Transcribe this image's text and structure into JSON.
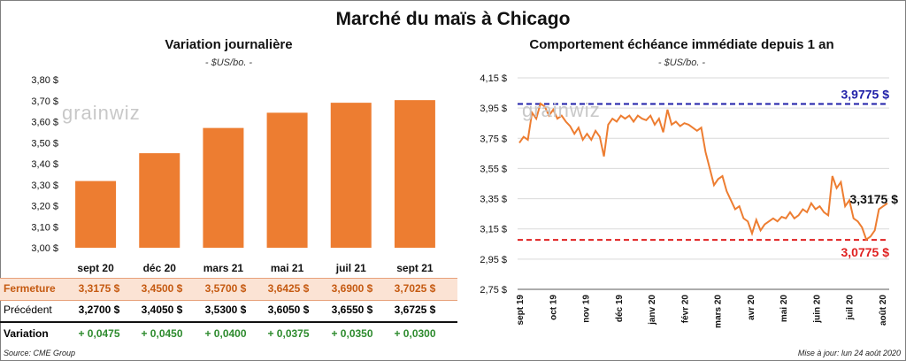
{
  "main_title": "Marché du maïs à Chicago",
  "left": {
    "title": "Variation journalière",
    "subtitle": "- $US/bo. -",
    "watermark": "grainwiz",
    "table": {
      "close_label": "Fermeture",
      "prev_label": "Précédent",
      "var_label": "Variation",
      "close": [
        "3,3175 $",
        "3,4500 $",
        "3,5700 $",
        "3,6425 $",
        "3,6900 $",
        "3,7025 $"
      ],
      "prev": [
        "3,2700 $",
        "3,4050 $",
        "3,5300 $",
        "3,6050 $",
        "3,6550 $",
        "3,6725 $"
      ],
      "var": [
        "+ 0,0475",
        "+ 0,0450",
        "+ 0,0400",
        "+ 0,0375",
        "+ 0,0350",
        "+ 0,0300"
      ]
    }
  },
  "right": {
    "title": "Comportement échéance immédiate depuis 1 an",
    "subtitle": "- $US/bo. -",
    "watermark": "grainwiz",
    "high_label": "3,9775 $",
    "last_label": "3,3175 $",
    "low_label": "3,0775 $"
  },
  "source": "Source: CME Group",
  "update": "Mise à jour: lun 24 août 2020",
  "colors": {
    "bar": "#ed7d31",
    "high": "#1f1fa8",
    "low": "#e02020",
    "up": "#2e8b2e"
  },
  "chart_data": [
    {
      "type": "bar",
      "categories": [
        "sept 20",
        "déc 20",
        "mars 21",
        "mai 21",
        "juil 21",
        "sept 21"
      ],
      "values": [
        3.3175,
        3.45,
        3.57,
        3.6425,
        3.69,
        3.7025
      ],
      "ylim": [
        3.0,
        3.8
      ],
      "yticks": [
        "3,00 $",
        "3,10 $",
        "3,20 $",
        "3,30 $",
        "3,40 $",
        "3,50 $",
        "3,60 $",
        "3,70 $",
        "3,80 $"
      ]
    },
    {
      "type": "line",
      "ylim": [
        2.75,
        4.15
      ],
      "yticks": [
        "2,75 $",
        "2,95 $",
        "3,15 $",
        "3,35 $",
        "3,55 $",
        "3,75 $",
        "3,95 $",
        "4,15 $"
      ],
      "xticks": [
        "sept 19",
        "oct 19",
        "nov 19",
        "déc 19",
        "janv 20",
        "févr 20",
        "mars 20",
        "avr 20",
        "mai 20",
        "juin 20",
        "juil 20",
        "août 20"
      ],
      "reference_lines": [
        3.9775,
        3.0775
      ],
      "points": [
        [
          0,
          3.72
        ],
        [
          1,
          3.76
        ],
        [
          2,
          3.74
        ],
        [
          3,
          3.92
        ],
        [
          4,
          3.88
        ],
        [
          5,
          3.98
        ],
        [
          6,
          3.96
        ],
        [
          7,
          3.9
        ],
        [
          8,
          3.94
        ],
        [
          9,
          3.88
        ],
        [
          10,
          3.9
        ],
        [
          11,
          3.86
        ],
        [
          12,
          3.83
        ],
        [
          13,
          3.78
        ],
        [
          14,
          3.82
        ],
        [
          15,
          3.74
        ],
        [
          16,
          3.78
        ],
        [
          17,
          3.74
        ],
        [
          18,
          3.8
        ],
        [
          19,
          3.76
        ],
        [
          20,
          3.63
        ],
        [
          21,
          3.84
        ],
        [
          22,
          3.88
        ],
        [
          23,
          3.86
        ],
        [
          24,
          3.9
        ],
        [
          25,
          3.88
        ],
        [
          26,
          3.9
        ],
        [
          27,
          3.86
        ],
        [
          28,
          3.9
        ],
        [
          29,
          3.88
        ],
        [
          30,
          3.87
        ],
        [
          31,
          3.9
        ],
        [
          32,
          3.84
        ],
        [
          33,
          3.88
        ],
        [
          34,
          3.79
        ],
        [
          35,
          3.94
        ],
        [
          36,
          3.84
        ],
        [
          37,
          3.86
        ],
        [
          38,
          3.83
        ],
        [
          39,
          3.85
        ],
        [
          40,
          3.84
        ],
        [
          41,
          3.82
        ],
        [
          42,
          3.8
        ],
        [
          43,
          3.82
        ],
        [
          44,
          3.66
        ],
        [
          45,
          3.55
        ],
        [
          46,
          3.44
        ],
        [
          47,
          3.48
        ],
        [
          48,
          3.5
        ],
        [
          49,
          3.4
        ],
        [
          50,
          3.34
        ],
        [
          51,
          3.28
        ],
        [
          52,
          3.3
        ],
        [
          53,
          3.22
        ],
        [
          54,
          3.2
        ],
        [
          55,
          3.12
        ],
        [
          56,
          3.21
        ],
        [
          57,
          3.14
        ],
        [
          58,
          3.18
        ],
        [
          59,
          3.2
        ],
        [
          60,
          3.22
        ],
        [
          61,
          3.2
        ],
        [
          62,
          3.23
        ],
        [
          63,
          3.22
        ],
        [
          64,
          3.26
        ],
        [
          65,
          3.22
        ],
        [
          66,
          3.24
        ],
        [
          67,
          3.28
        ],
        [
          68,
          3.26
        ],
        [
          69,
          3.32
        ],
        [
          70,
          3.28
        ],
        [
          71,
          3.3
        ],
        [
          72,
          3.26
        ],
        [
          73,
          3.24
        ],
        [
          74,
          3.5
        ],
        [
          75,
          3.42
        ],
        [
          76,
          3.46
        ],
        [
          77,
          3.3
        ],
        [
          78,
          3.34
        ],
        [
          79,
          3.22
        ],
        [
          80,
          3.2
        ],
        [
          81,
          3.16
        ],
        [
          82,
          3.08
        ],
        [
          83,
          3.1
        ],
        [
          84,
          3.14
        ],
        [
          85,
          3.28
        ],
        [
          86,
          3.3
        ],
        [
          87,
          3.32
        ]
      ]
    }
  ]
}
